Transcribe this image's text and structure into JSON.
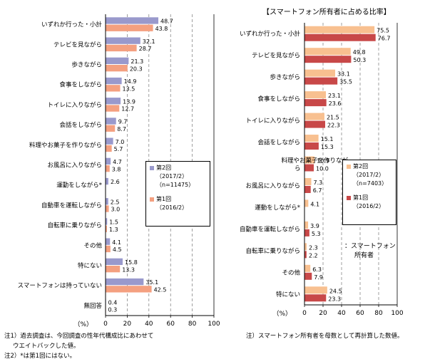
{
  "right_title": "【スマートフォン所有者に占める比率】",
  "notes_left": [
    "注1）過去調査は、今回調査の性年代構成比にあわせて",
    "ウエイトバックした値。",
    "注2）*は第1回にはない。"
  ],
  "note_right": "注）スマートフォン所有者を母数として再計算した数値。",
  "colors": {
    "s2_left": "#9999cc",
    "s1_left": "#f4a080",
    "s2_right": "#f8c090",
    "s1_right": "#c84848"
  },
  "legend_left": {
    "s2_name": "第2回",
    "s2_date": "（2017/2）",
    "s2_n": "（n=11475）",
    "s1_name": "第1回",
    "s1_date": "（2016/2）"
  },
  "legend_right": {
    "s2_name": "第2回",
    "s2_date": "（2017/2）",
    "s2_n": "（n=7403）",
    "s1_name": "第1回",
    "s1_date": "（2016/2）"
  },
  "right_annotation": [
    "：スマートフォン",
    "所有者"
  ],
  "chart_data": [
    {
      "type": "bar",
      "orientation": "horizontal",
      "categories": [
        "いずれか行った・小計",
        "テレビを見ながら",
        "歩きながら",
        "食事をしながら",
        "トイレに入りながら",
        "会話をしながら",
        "料理やお菓子を作りながら",
        "お風呂に入りながら",
        "運動をしながら*",
        "自動車を運転しながら",
        "自転車に乗りながら",
        "その他",
        "特にない",
        "スマートフォンは持っていない",
        "無回答"
      ],
      "series": [
        {
          "name": "第2回",
          "values": [
            48.7,
            32.1,
            21.3,
            14.9,
            13.9,
            9.7,
            7.0,
            4.7,
            2.6,
            2.5,
            1.5,
            4.1,
            15.8,
            35.1,
            0.4
          ]
        },
        {
          "name": "第1回",
          "values": [
            43.8,
            28.7,
            20.3,
            13.5,
            12.7,
            8.7,
            5.7,
            3.8,
            null,
            3.0,
            1.3,
            4.5,
            13.3,
            42.5,
            0.3
          ]
        }
      ],
      "value_labels": {
        "s2": [
          "48.7",
          "32.1",
          "21.3",
          "14.9",
          "13.9",
          "9.7",
          "7.0",
          "4.7",
          "2.6",
          "2.5",
          "1.5",
          "4.1",
          "15.8",
          "35.1",
          "0.4"
        ],
        "s1": [
          "43.8",
          "28.7",
          "20.3",
          "13.5",
          "12.7",
          "8.7",
          "5.7",
          "3.8",
          "",
          "3.0",
          "1.3",
          "4.5",
          "13.3",
          "42.5",
          "0.3"
        ]
      },
      "xlim": [
        0,
        100
      ],
      "ticks": [
        "0",
        "20",
        "40",
        "60",
        "80",
        "100"
      ],
      "unit": "（%）"
    },
    {
      "type": "bar",
      "orientation": "horizontal",
      "title": "【スマートフォン所有者に占める比率】",
      "categories": [
        "いずれか行った・小計",
        "テレビを見ながら",
        "歩きながら",
        "食事をしながら",
        "トイレに入りながら",
        "会話をしながら",
        "料理やお菓子を作りながら",
        "お風呂に入りながら",
        "運動をしながら*",
        "自動車を運転しながら",
        "自転車に乗りながら",
        "その他",
        "特にない"
      ],
      "series": [
        {
          "name": "第2回",
          "values": [
            75.5,
            49.8,
            33.1,
            23.1,
            21.5,
            15.1,
            10.9,
            7.3,
            4.1,
            3.9,
            2.3,
            6.3,
            24.5
          ]
        },
        {
          "name": "第1回",
          "values": [
            76.7,
            50.3,
            35.5,
            23.6,
            22.3,
            15.3,
            10.0,
            6.7,
            null,
            5.3,
            2.2,
            7.9,
            23.3
          ]
        }
      ],
      "value_labels": {
        "s2": [
          "75.5",
          "49.8",
          "33.1",
          "23.1",
          "21.5",
          "15.1",
          "10.9",
          "7.3",
          "4.1",
          "3.9",
          "2.3",
          "6.3",
          "24.5"
        ],
        "s1": [
          "76.7",
          "50.3",
          "35.5",
          "23.6",
          "22.3",
          "15.3",
          "10.0",
          "6.7",
          "",
          "5.3",
          "2.2",
          "7.9",
          "23.3"
        ]
      },
      "xlim": [
        0,
        100
      ],
      "ticks": [
        "0",
        "20",
        "40",
        "60",
        "80",
        "100"
      ],
      "unit": "（%）"
    }
  ]
}
